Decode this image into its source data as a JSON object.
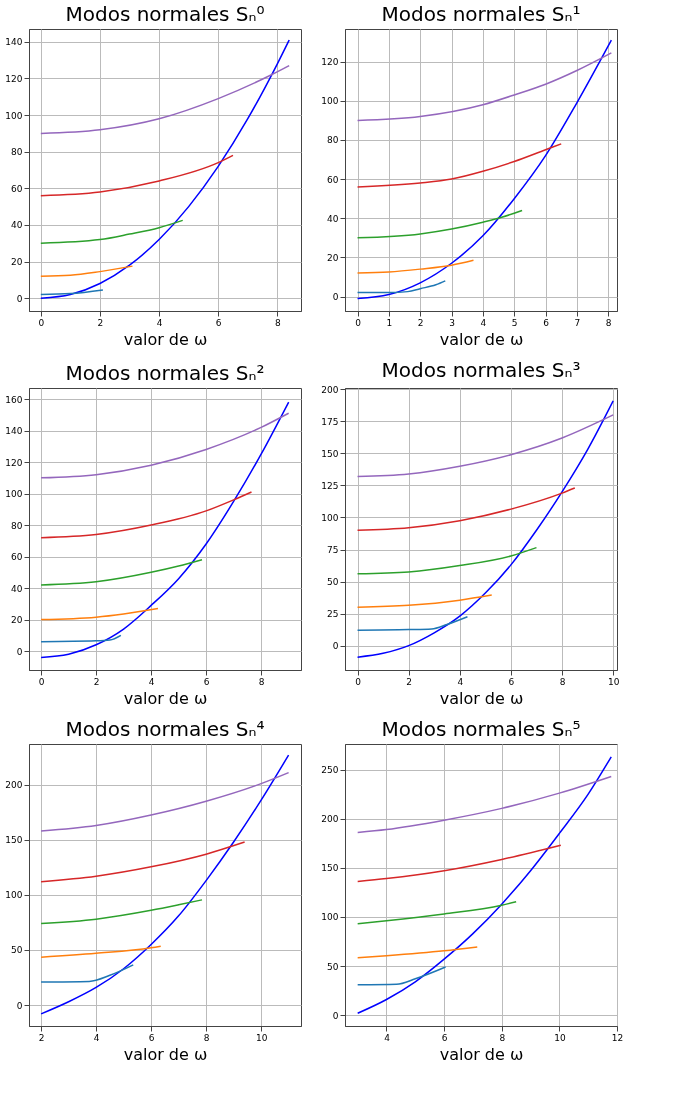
{
  "chart_data": [
    {
      "type": "line",
      "title": "Modos normales Sₙ⁰",
      "xlabel": "valor de ω",
      "grid": true,
      "xlim": [
        -0.4,
        8.8
      ],
      "ylim": [
        -7,
        147
      ],
      "xticks": [
        0,
        2,
        4,
        6,
        8
      ],
      "yticks": [
        0,
        20,
        40,
        60,
        80,
        100,
        120,
        140
      ],
      "series": [
        {
          "color": "#0000ff",
          "x": [
            0,
            1,
            2,
            3,
            4,
            5,
            6,
            7,
            8,
            8.4
          ],
          "values": [
            0,
            2,
            8,
            18,
            32,
            50,
            72,
            98,
            128,
            141
          ]
        },
        {
          "color": "#9467bd",
          "x": [
            0,
            2,
            4,
            6,
            7.8,
            8.4
          ],
          "values": [
            90,
            92,
            98,
            109,
            122,
            127
          ]
        },
        {
          "color": "#d62728",
          "x": [
            0,
            2,
            4,
            6,
            6.5
          ],
          "values": [
            56,
            58,
            64,
            74,
            78
          ]
        },
        {
          "color": "#2ca02c",
          "x": [
            0,
            2,
            3,
            4,
            4.8
          ],
          "values": [
            30,
            32,
            35,
            38.5,
            42.5
          ]
        },
        {
          "color": "#ff7f0e",
          "x": [
            0,
            1,
            2,
            3.1
          ],
          "values": [
            12,
            12.5,
            14.5,
            17.5
          ]
        },
        {
          "color": "#1f77b4",
          "x": [
            0,
            1,
            2.1
          ],
          "values": [
            2,
            2.5,
            4.5
          ]
        }
      ]
    },
    {
      "type": "line",
      "title": "Modos normales Sₙ¹",
      "xlabel": "valor de ω",
      "grid": true,
      "xlim": [
        -0.4,
        8.28
      ],
      "ylim": [
        -7.4,
        136.7
      ],
      "xticks": [
        0,
        1,
        2,
        3,
        4,
        5,
        6,
        7,
        8
      ],
      "yticks": [
        0,
        20,
        40,
        60,
        80,
        100,
        120
      ],
      "series": [
        {
          "color": "#0000ff",
          "x": [
            0,
            1,
            2,
            3,
            4,
            5,
            6,
            7,
            8.1
          ],
          "values": [
            -1,
            1,
            7,
            17,
            31,
            50,
            72,
            99,
            131
          ]
        },
        {
          "color": "#9467bd",
          "x": [
            0,
            2,
            4,
            5,
            6,
            7,
            8.1
          ],
          "values": [
            90,
            92,
            98,
            103,
            108.5,
            115.5,
            124.5
          ]
        },
        {
          "color": "#d62728",
          "x": [
            0,
            2,
            3,
            4,
            5,
            6,
            6.5
          ],
          "values": [
            56,
            58,
            60,
            64,
            69,
            75,
            78
          ]
        },
        {
          "color": "#2ca02c",
          "x": [
            0,
            2,
            3,
            4,
            4.6,
            5.25
          ],
          "values": [
            30,
            32,
            34.5,
            38,
            40.5,
            44
          ]
        },
        {
          "color": "#ff7f0e",
          "x": [
            0,
            1,
            2,
            3,
            3.7
          ],
          "values": [
            12,
            12.5,
            14,
            16,
            18.5
          ]
        },
        {
          "color": "#1f77b4",
          "x": [
            0,
            1,
            1.6,
            2,
            2.5,
            2.8
          ],
          "values": [
            2,
            2,
            2.5,
            4,
            6,
            8
          ]
        }
      ]
    },
    {
      "type": "line",
      "title": "Modos normales Sₙ²",
      "xlabel": "valor de ω",
      "grid": true,
      "xlim": [
        -0.44,
        9.45
      ],
      "ylim": [
        -12,
        167
      ],
      "xticks": [
        0,
        2,
        4,
        6,
        8
      ],
      "yticks": [
        0,
        20,
        40,
        60,
        80,
        100,
        120,
        140,
        160
      ],
      "series": [
        {
          "color": "#0000ff",
          "x": [
            0,
            1,
            2,
            3,
            4,
            5,
            6,
            7,
            8,
            9
          ],
          "values": [
            -4,
            -2,
            4,
            14,
            29,
            46,
            68,
            95,
            125,
            158
          ]
        },
        {
          "color": "#9467bd",
          "x": [
            0,
            2,
            4,
            6,
            8,
            9
          ],
          "values": [
            110,
            112,
            118,
            128,
            142,
            151
          ]
        },
        {
          "color": "#d62728",
          "x": [
            0,
            2,
            4,
            6,
            7,
            7.65
          ],
          "values": [
            72,
            74,
            80,
            89,
            96,
            101
          ]
        },
        {
          "color": "#2ca02c",
          "x": [
            0,
            2,
            4,
            5,
            5.85
          ],
          "values": [
            42,
            44,
            50,
            54,
            58
          ]
        },
        {
          "color": "#ff7f0e",
          "x": [
            0,
            2,
            3,
            4.25
          ],
          "values": [
            20,
            21.5,
            23.5,
            27
          ]
        },
        {
          "color": "#1f77b4",
          "x": [
            0,
            2,
            2.5,
            2.9
          ],
          "values": [
            6,
            6.5,
            7,
            10
          ]
        }
      ]
    },
    {
      "type": "line",
      "title": "Modos normales Sₙ³",
      "xlabel": "valor de ω",
      "grid": true,
      "xlim": [
        -0.49,
        10.15
      ],
      "ylim": [
        -19,
        201
      ],
      "xticks": [
        0,
        2,
        4,
        6,
        8,
        10
      ],
      "yticks": [
        0,
        25,
        50,
        75,
        100,
        125,
        150,
        175,
        200
      ],
      "series": [
        {
          "color": "#0000ff",
          "x": [
            0,
            1,
            2,
            3,
            4,
            5,
            6,
            7,
            8,
            9,
            10
          ],
          "values": [
            -9,
            -6,
            0,
            10,
            23,
            41,
            63,
            90,
            120,
            153,
            191
          ]
        },
        {
          "color": "#9467bd",
          "x": [
            0,
            2,
            4,
            6,
            8,
            10
          ],
          "values": [
            132,
            134,
            140,
            149,
            162,
            180
          ]
        },
        {
          "color": "#d62728",
          "x": [
            0,
            2,
            4,
            6,
            8,
            8.5
          ],
          "values": [
            90,
            92,
            97.5,
            106.5,
            119,
            123
          ]
        },
        {
          "color": "#2ca02c",
          "x": [
            0,
            2,
            4,
            6,
            7
          ],
          "values": [
            56,
            57.5,
            62.5,
            70,
            76.5
          ]
        },
        {
          "color": "#ff7f0e",
          "x": [
            0,
            2,
            4,
            5.25
          ],
          "values": [
            30,
            31.5,
            35.5,
            39.5
          ]
        },
        {
          "color": "#1f77b4",
          "x": [
            0,
            2,
            2.9,
            3.5,
            4.3
          ],
          "values": [
            12,
            12.5,
            13,
            16.5,
            22.5
          ]
        }
      ]
    },
    {
      "type": "line",
      "title": "Modos normales Sₙ⁴",
      "xlabel": "valor de ω",
      "grid": true,
      "xlim": [
        1.56,
        11.45
      ],
      "ylim": [
        -19,
        237
      ],
      "xticks": [
        2,
        4,
        6,
        8,
        10
      ],
      "yticks": [
        0,
        50,
        100,
        150,
        200
      ],
      "series": [
        {
          "color": "#0000ff",
          "x": [
            2,
            3,
            4,
            5,
            6,
            7,
            8,
            9,
            10,
            11
          ],
          "values": [
            -8,
            3,
            16,
            33,
            55,
            81,
            113,
            148,
            186,
            227
          ]
        },
        {
          "color": "#9467bd",
          "x": [
            2,
            4,
            6,
            8,
            10,
            11
          ],
          "values": [
            158,
            163,
            172.5,
            185,
            201,
            211
          ]
        },
        {
          "color": "#d62728",
          "x": [
            2,
            4,
            6,
            8,
            9.4
          ],
          "values": [
            112,
            117,
            125.5,
            137,
            148
          ]
        },
        {
          "color": "#2ca02c",
          "x": [
            2,
            4,
            6,
            7,
            7.85
          ],
          "values": [
            74,
            78,
            86,
            91,
            95.5
          ]
        },
        {
          "color": "#ff7f0e",
          "x": [
            2,
            4,
            6,
            6.35
          ],
          "values": [
            43.5,
            47,
            52,
            53.5
          ]
        },
        {
          "color": "#1f77b4",
          "x": [
            2,
            3.75,
            4.5,
            5.35
          ],
          "values": [
            21,
            21.5,
            27,
            36.5
          ]
        }
      ]
    },
    {
      "type": "line",
      "title": "Modos normales Sₙ⁵",
      "xlabel": "valor de ω",
      "grid": true,
      "xlim": [
        2.56,
        12.0
      ],
      "ylim": [
        -11,
        276
      ],
      "xticks": [
        4,
        6,
        8,
        10,
        12
      ],
      "yticks": [
        0,
        50,
        100,
        150,
        200,
        250
      ],
      "series": [
        {
          "color": "#0000ff",
          "x": [
            3,
            4,
            5,
            6,
            7,
            8,
            9,
            10,
            11,
            11.8
          ],
          "values": [
            2,
            16,
            34,
            57,
            83,
            113,
            147,
            185,
            225,
            263
          ]
        },
        {
          "color": "#9467bd",
          "x": [
            3,
            4,
            6,
            8,
            10,
            11.8
          ],
          "values": [
            186,
            189,
            198.5,
            210.5,
            226,
            243
          ]
        },
        {
          "color": "#d62728",
          "x": [
            3,
            4,
            6,
            8,
            10.05
          ],
          "values": [
            136,
            139,
            147,
            158.5,
            173
          ]
        },
        {
          "color": "#2ca02c",
          "x": [
            3,
            4,
            6,
            8,
            8.5
          ],
          "values": [
            93,
            96,
            103,
            112,
            115.5
          ]
        },
        {
          "color": "#ff7f0e",
          "x": [
            3,
            4,
            6,
            7.15
          ],
          "values": [
            58.5,
            60.5,
            65.5,
            69.5
          ]
        },
        {
          "color": "#1f77b4",
          "x": [
            3,
            4.35,
            5,
            6.05
          ],
          "values": [
            31,
            31.5,
            37,
            49
          ]
        }
      ]
    }
  ]
}
